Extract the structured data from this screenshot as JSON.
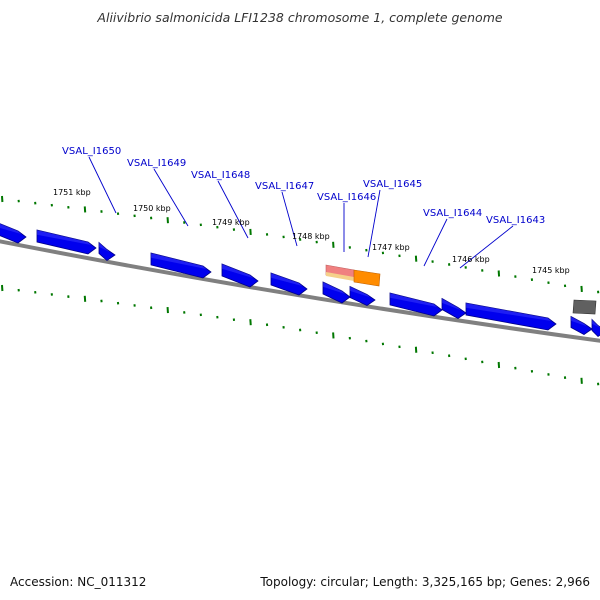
{
  "title": "Aliivibrio salmonicida LFI1238 chromosome 1, complete genome",
  "accession_text": "Accession: NC_011312",
  "summary_text": "Topology: circular; Length: 3,325,165 bp; Genes: 2,966",
  "colors": {
    "gene": "#0000ee",
    "gene_shadow": "#000088",
    "gene_highlight": "#5555ff",
    "tick": "#007700",
    "backbone": "#808080",
    "label_gene": "#0000cc",
    "label_kbp": "#000000",
    "leader": "#0000cc",
    "feature_orange": "#ff8c00",
    "feature_pink": "#f08080",
    "feature_gray": "#606060"
  },
  "kbp_labels": [
    "1751 kbp",
    "1750 kbp",
    "1749 kbp",
    "1748 kbp",
    "1747 kbp",
    "1746 kbp",
    "1745 kbp"
  ],
  "gene_labels": [
    "VSAL_I1650",
    "VSAL_I1649",
    "VSAL_I1648",
    "VSAL_I1647",
    "VSAL_I1646",
    "VSAL_I1645",
    "VSAL_I1644",
    "VSAL_I1643"
  ]
}
